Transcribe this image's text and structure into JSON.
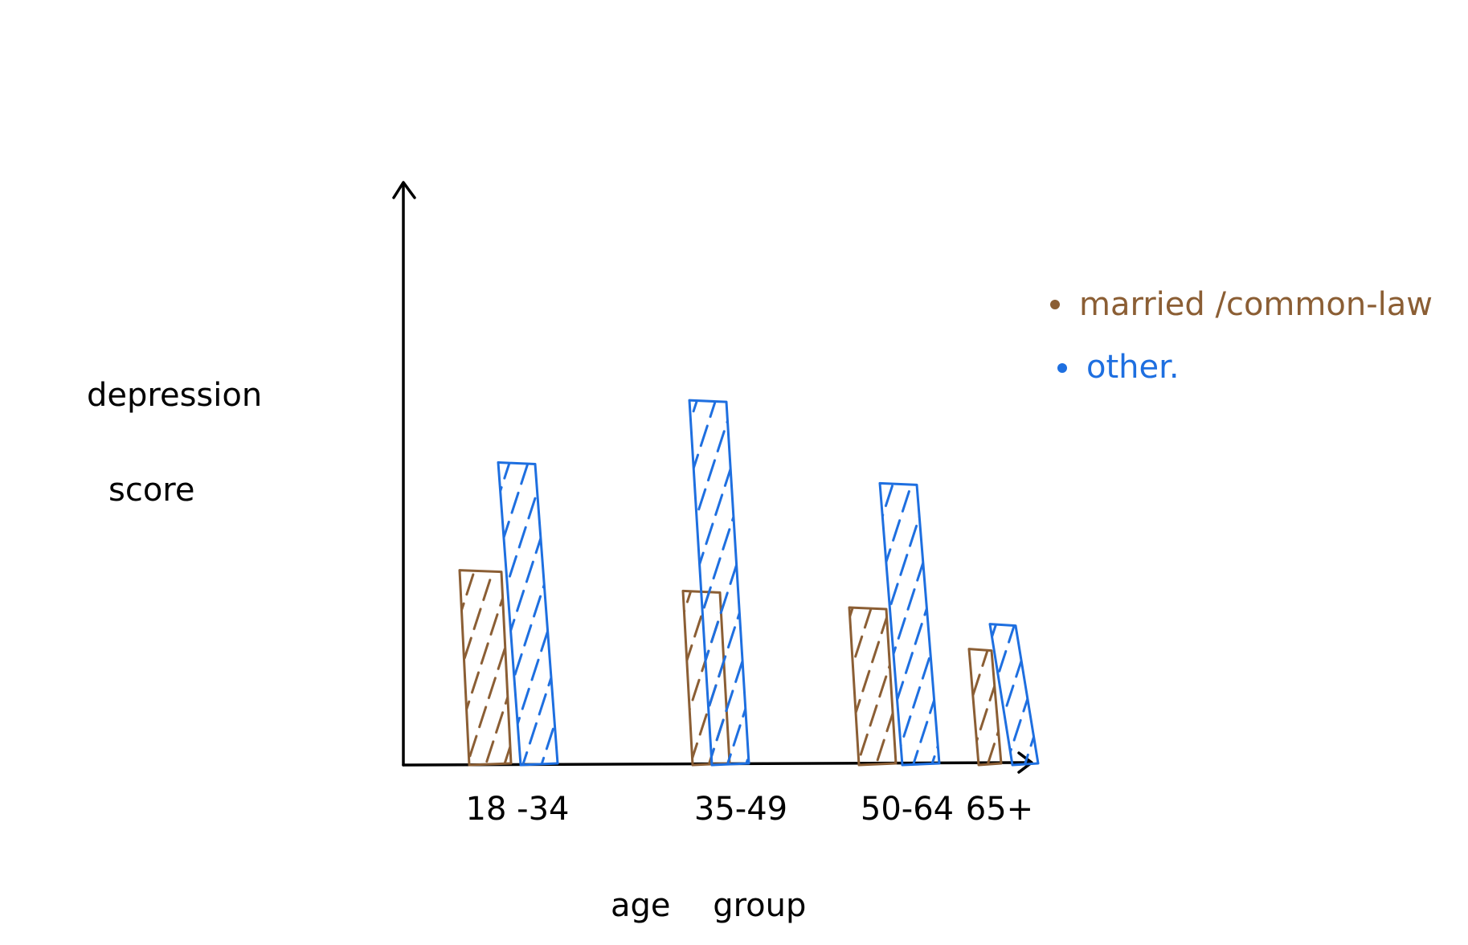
{
  "chart_data": {
    "type": "bar",
    "title": "",
    "xlabel": "age group",
    "ylabel_lines": [
      "depression",
      "score"
    ],
    "categories": [
      "18 -34",
      "35-49",
      "50-64",
      "65+"
    ],
    "series": [
      {
        "name": "married /common-law",
        "color": "#8B5E34",
        "values": [
          4.7,
          4.2,
          3.8,
          2.8
        ]
      },
      {
        "name": "other.",
        "color": "#1E6FE0",
        "values": [
          7.3,
          8.8,
          6.8,
          3.4
        ]
      }
    ],
    "ylim": [
      0,
      14
    ],
    "grid": false,
    "legend_position": "right",
    "fill_style": "hand-drawn hatching"
  }
}
